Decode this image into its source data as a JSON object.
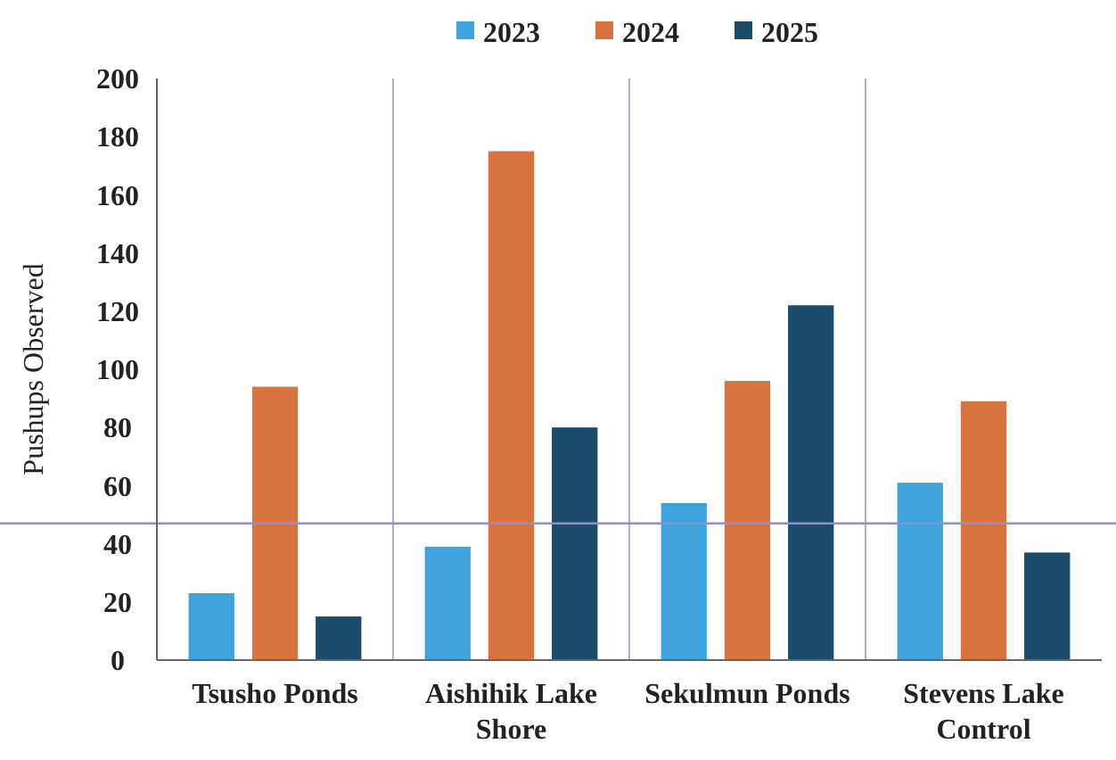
{
  "chart_data": {
    "type": "bar",
    "ylabel": "Pushups Observed",
    "categories": [
      "Tsusho Ponds",
      "Aishihik Lake Shore",
      "Sekulmun Ponds",
      "Stevens Lake Control"
    ],
    "series": [
      {
        "name": "2023",
        "color": "#3fa3de",
        "values": [
          23,
          39,
          54,
          61
        ]
      },
      {
        "name": "2024",
        "color": "#d8733f",
        "values": [
          94,
          175,
          96,
          89
        ]
      },
      {
        "name": "2025",
        "color": "#1b4a6b",
        "values": [
          15,
          80,
          122,
          37
        ]
      }
    ],
    "ylim": [
      0,
      200
    ],
    "yticks": [
      0,
      20,
      40,
      60,
      80,
      100,
      120,
      140,
      160,
      180,
      200
    ],
    "grid": "x",
    "legend": "top",
    "ref_lines": [
      {
        "axis": "y",
        "value": 47,
        "color": "#8f8fd0"
      }
    ]
  }
}
